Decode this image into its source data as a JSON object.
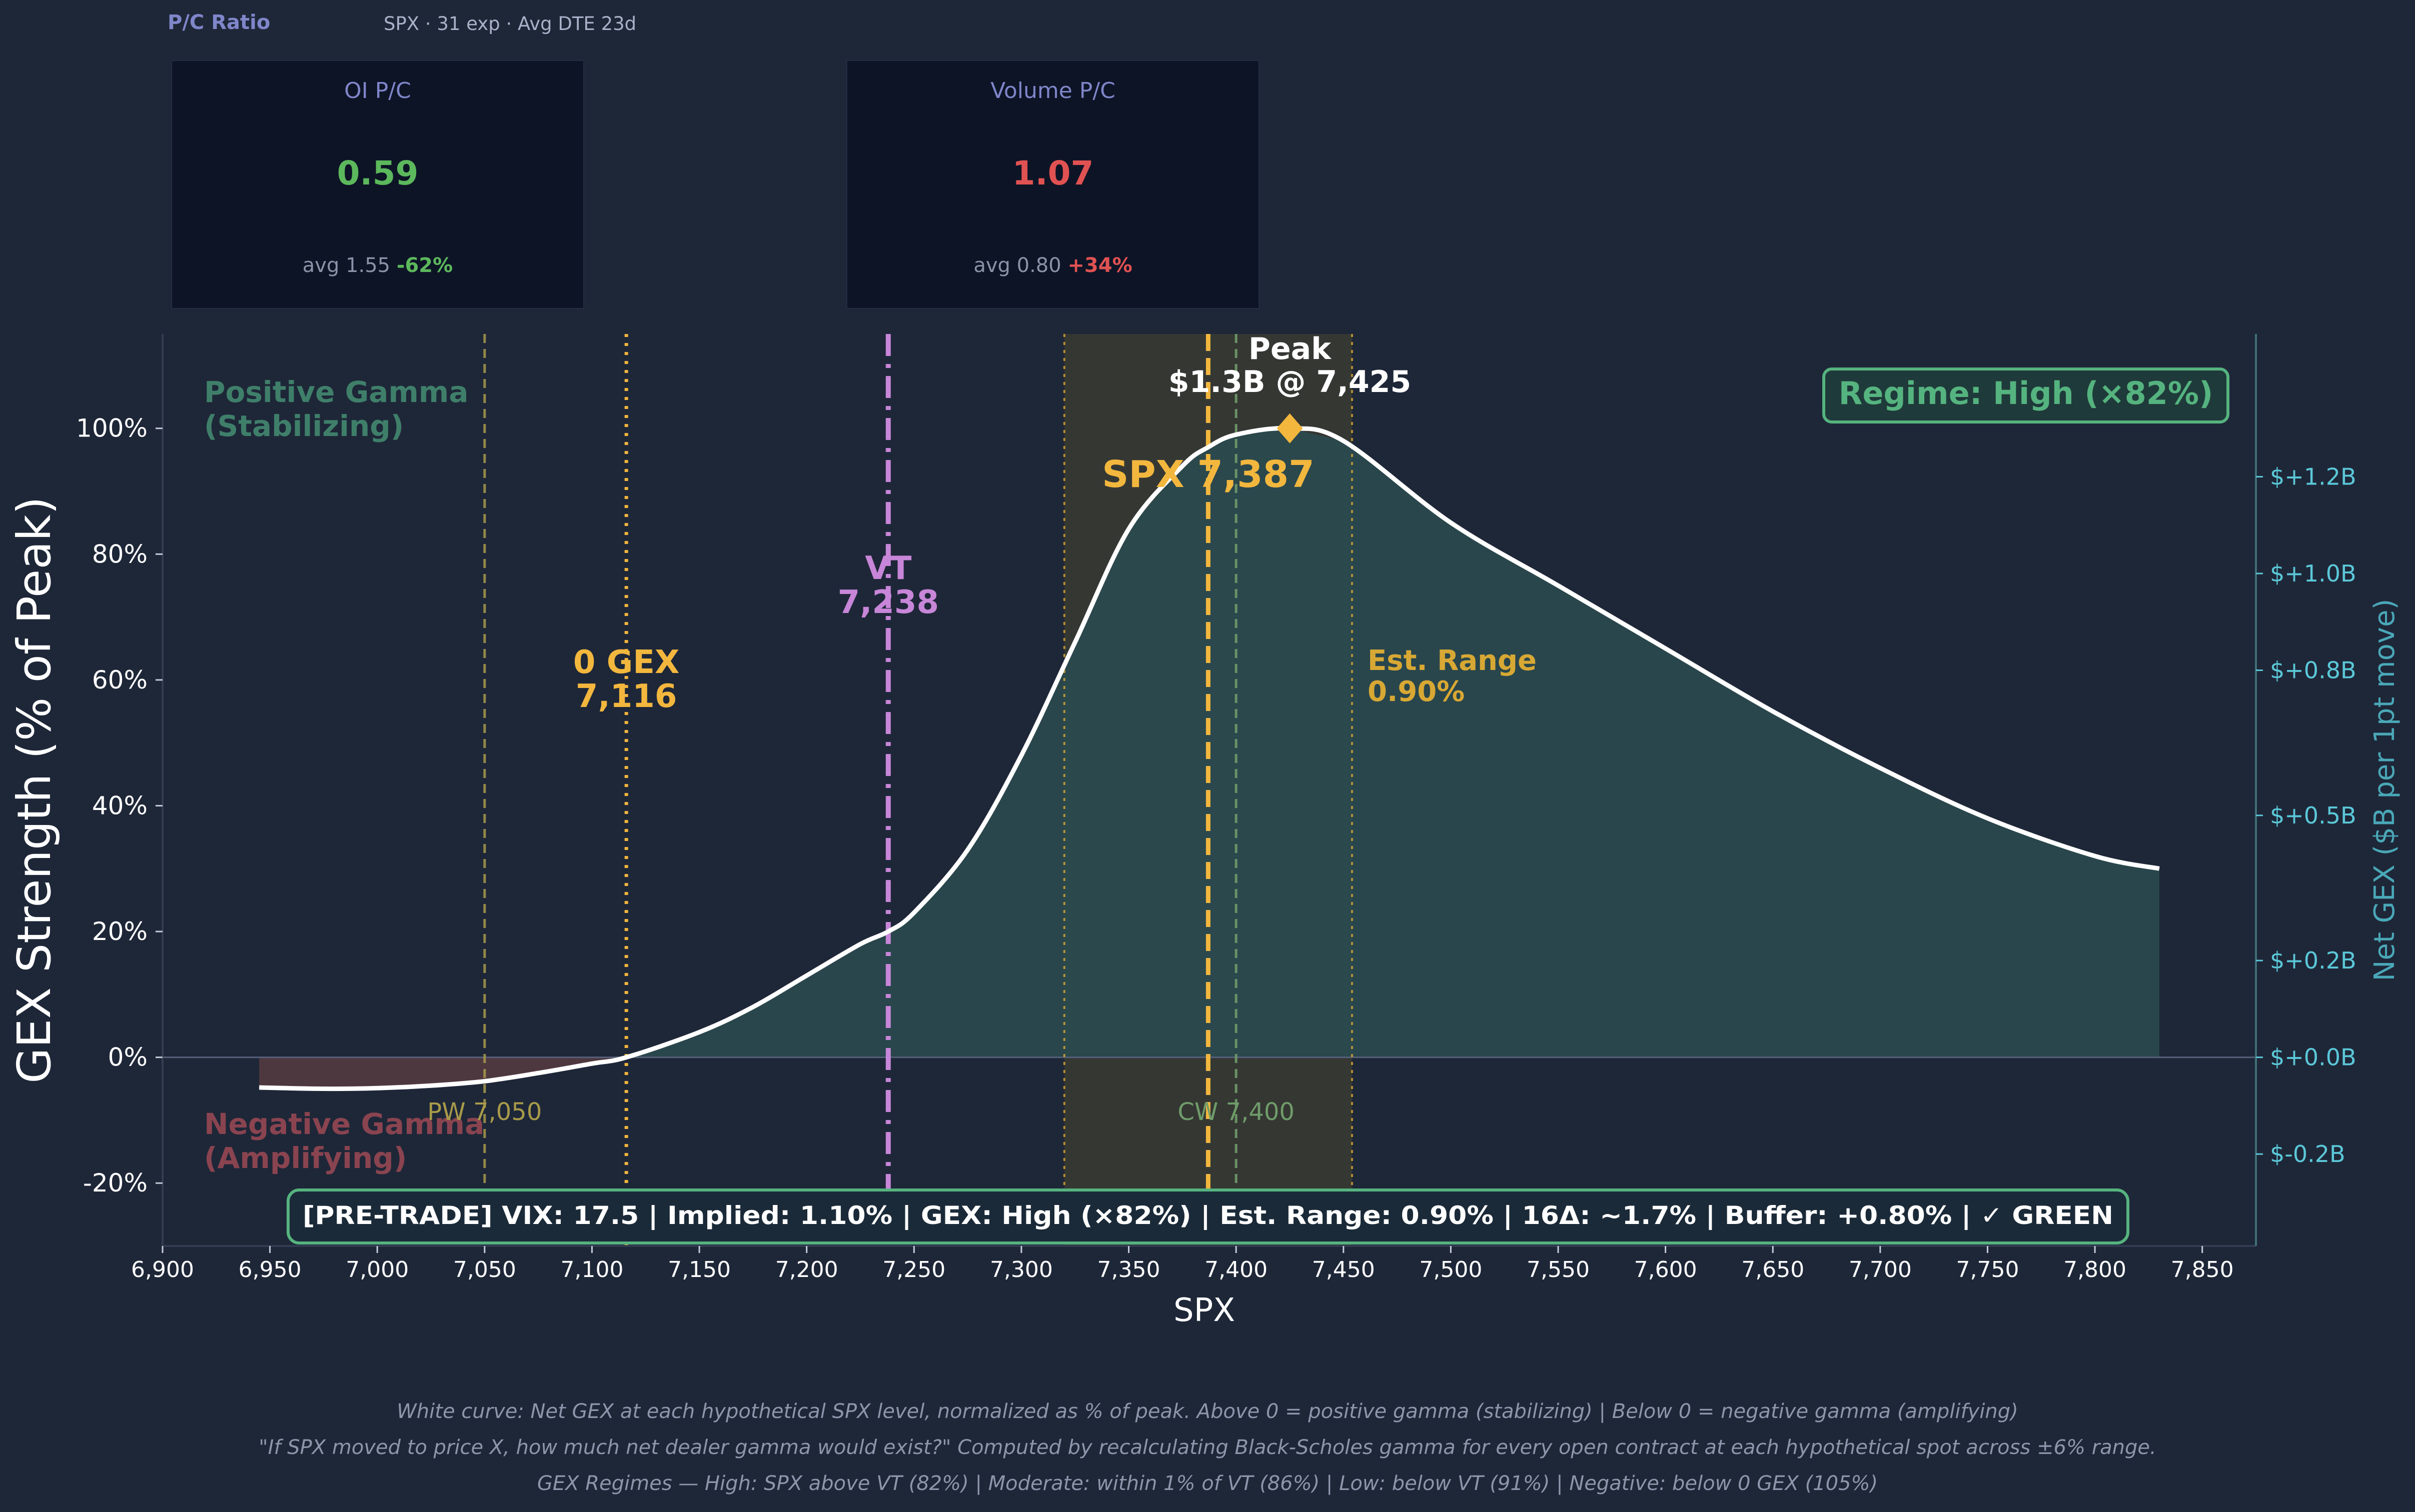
{
  "header": {
    "title": "P/C Ratio",
    "subtitle": "SPX · 31 exp · Avg DTE 23d"
  },
  "cards": [
    {
      "label": "OI P/C",
      "value": "0.59",
      "value_color": "#5cb85c",
      "avg_text": "avg 1.55",
      "pct_text": "-62%",
      "pct_color": "#5cb85c"
    },
    {
      "label": "Volume P/C",
      "value": "1.07",
      "value_color": "#e05252",
      "avg_text": "avg 0.80",
      "pct_text": "+34%",
      "pct_color": "#e05252"
    }
  ],
  "chart_data": {
    "type": "area",
    "title": "",
    "xlabel": "SPX",
    "ylabel": "GEX Strength (% of Peak)",
    "y2label": "Net GEX ($B per 1pt move)",
    "xlim": [
      6900,
      7875
    ],
    "ylim": [
      -30,
      115
    ],
    "y2lim": [
      -0.39,
      1.495
    ],
    "x_ticks": [
      6900,
      6950,
      7000,
      7050,
      7100,
      7150,
      7200,
      7250,
      7300,
      7350,
      7400,
      7450,
      7500,
      7550,
      7600,
      7650,
      7700,
      7750,
      7800,
      7850
    ],
    "x_tick_labels": [
      "6,900",
      "6,950",
      "7,000",
      "7,050",
      "7,100",
      "7,150",
      "7,200",
      "7,250",
      "7,300",
      "7,350",
      "7,400",
      "7,450",
      "7,500",
      "7,550",
      "7,600",
      "7,650",
      "7,700",
      "7,750",
      "7,800",
      "7,850"
    ],
    "y_ticks": [
      -20,
      0,
      20,
      40,
      60,
      80,
      100
    ],
    "y_tick_labels": [
      "-20%",
      "0%",
      "20%",
      "40%",
      "60%",
      "80%",
      "100%"
    ],
    "y2_ticks": [
      -0.2,
      0.0,
      0.2,
      0.5,
      0.8,
      1.0,
      1.2
    ],
    "y2_tick_labels": [
      "$-0.2B",
      "$+0.0B",
      "$+0.2B",
      "$+0.5B",
      "$+0.8B",
      "$+1.0B",
      "$+1.2B"
    ],
    "series": [
      {
        "x": [
          6945,
          6975,
          7000,
          7025,
          7050,
          7075,
          7100,
          7116,
          7150,
          7175,
          7200,
          7225,
          7238,
          7250,
          7275,
          7300,
          7325,
          7350,
          7375,
          7387,
          7400,
          7425,
          7450,
          7500,
          7550,
          7600,
          7650,
          7700,
          7750,
          7800,
          7830
        ],
        "values": [
          -4.8,
          -5.0,
          -4.9,
          -4.5,
          -3.8,
          -2.5,
          -1.0,
          0.0,
          4.0,
          8.0,
          13.0,
          18.0,
          20.0,
          23.0,
          33.0,
          48.0,
          66.0,
          84.0,
          94.0,
          97.0,
          99.0,
          100.0,
          98.0,
          85.0,
          75.0,
          65.0,
          55.0,
          46.0,
          38.0,
          32.0,
          30.0
        ]
      }
    ],
    "levels": {
      "put_wall": {
        "x": 7050,
        "label": "PW 7,050",
        "color": "#a89a4a"
      },
      "zero_gex": {
        "x": 7116,
        "line1": "0 GEX",
        "line2": "7,116",
        "color": "#f3b73e"
      },
      "vt": {
        "x": 7238,
        "line1": "VT",
        "line2": "7,238",
        "color": "#c786d8"
      },
      "spot": {
        "x": 7387,
        "label": "SPX 7,387",
        "color": "#f3b73e"
      },
      "call_wall": {
        "x": 7400,
        "label": "CW 7,400",
        "color": "#6f9c6a"
      },
      "peak": {
        "x": 7425,
        "y": 100,
        "line1": "Peak",
        "line2": "$1.3B @ 7,425",
        "color": "#f3b73e"
      }
    },
    "est_range": {
      "low": 7320,
      "high": 7454,
      "line1": "Est. Range",
      "line2": "0.90%",
      "color": "#d8a834"
    },
    "regions": {
      "positive_line1": "Positive Gamma",
      "positive_line2": "(Stabilizing)",
      "negative_line1": "Negative Gamma",
      "negative_line2": "(Amplifying)"
    },
    "regime_box": "Regime: High (×82%)",
    "pretrade_banner": "[PRE-TRADE]  VIX: 17.5  |  Implied: 1.10%  |  GEX: High (×82%)  |  Est. Range: 0.90%  |  16Δ: ~1.7%  |  Buffer: +0.80%  |  ✓ GREEN",
    "colors": {
      "curve": "#ffffff",
      "positive_fill": "#2a4a4f",
      "negative_fill": "#4e3840",
      "right_axis": "#5bc8d8",
      "regime": "#55b37f",
      "positive_text": "#3f7f6a",
      "negative_text": "#8a4450"
    }
  },
  "footer": {
    "line1": "White curve: Net GEX at each hypothetical SPX level, normalized as % of peak.  Above 0 = positive gamma (stabilizing)  |  Below 0 = negative gamma (amplifying)",
    "line2": "\"If SPX moved to price X, how much net dealer gamma would exist?\" Computed by recalculating Black-Scholes gamma for every open contract at each hypothetical spot across ±6% range.",
    "line3": "GEX Regimes — High: SPX above VT (82%)  |  Moderate: within 1% of VT (86%)  |  Low: below VT (91%)  |  Negative: below 0 GEX (105%)"
  }
}
